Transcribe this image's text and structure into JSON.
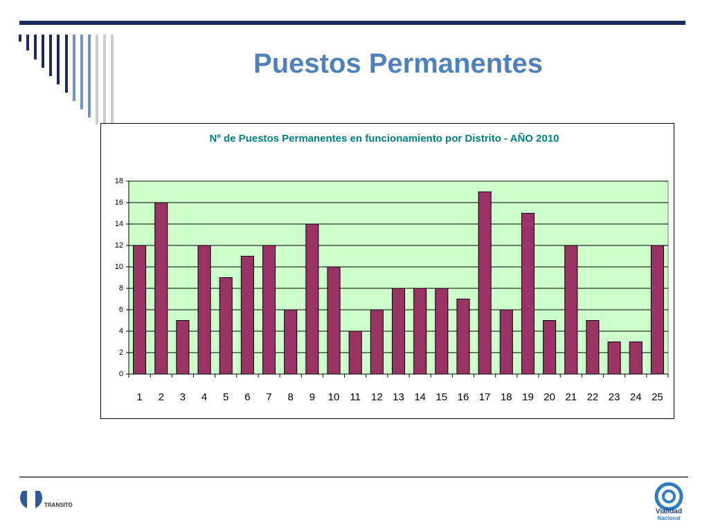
{
  "slide_title": "Puestos Permanentes",
  "footer_logos": {
    "left": "TRANSITO",
    "right_top": "Vialidad",
    "right_bottom": "Nacional"
  },
  "chart_data": {
    "type": "bar",
    "title": "Nº de Puestos Permanentes en funcionamiento por Distrito - AÑO 2010",
    "categories": [
      "1",
      "2",
      "3",
      "4",
      "5",
      "6",
      "7",
      "8",
      "9",
      "10",
      "11",
      "12",
      "13",
      "14",
      "15",
      "16",
      "17",
      "18",
      "19",
      "20",
      "21",
      "22",
      "23",
      "24",
      "25"
    ],
    "values": [
      12,
      16,
      5,
      12,
      9,
      11,
      12,
      6,
      14,
      10,
      4,
      6,
      8,
      8,
      8,
      7,
      17,
      6,
      15,
      5,
      12,
      5,
      3,
      3,
      12
    ],
    "color": "#993366",
    "plot_background": "#ccffcc",
    "ylim": [
      0,
      18
    ],
    "yticks": [
      0,
      2,
      4,
      6,
      8,
      10,
      12,
      14,
      16,
      18
    ],
    "grid": true
  }
}
